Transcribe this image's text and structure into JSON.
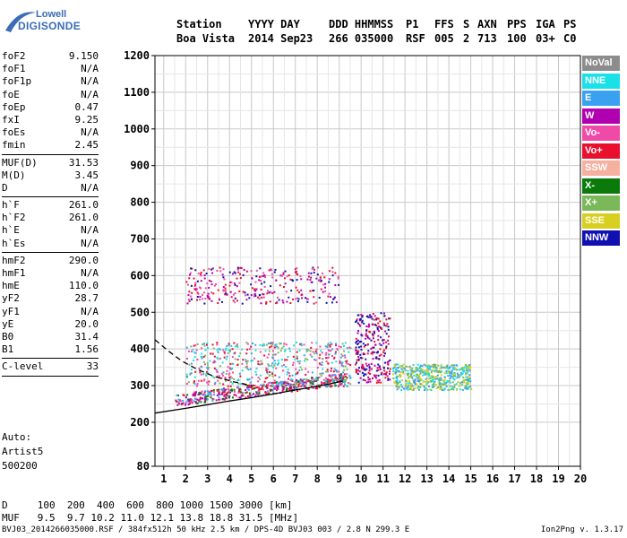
{
  "logo": {
    "line1": "Lowell",
    "line2": "DIGISONDE"
  },
  "header": {
    "row1": [
      "Station",
      "YYYY DAY",
      "DDD HHMMSS",
      "P1",
      "FFS",
      "S",
      "AXN",
      "PPS",
      "IGA",
      "PS"
    ],
    "row2": [
      "Boa Vista",
      "2014 Sep23",
      "266 035000",
      "RSF",
      "005",
      "2",
      "713",
      "100",
      "03+",
      "C0"
    ]
  },
  "params": [
    {
      "k": "foF2",
      "v": "9.150"
    },
    {
      "k": "foF1",
      "v": "N/A"
    },
    {
      "k": "foF1p",
      "v": "N/A"
    },
    {
      "k": "foE",
      "v": "N/A"
    },
    {
      "k": "foEp",
      "v": "0.47"
    },
    {
      "k": "fxI",
      "v": "9.25"
    },
    {
      "k": "foEs",
      "v": "N/A"
    },
    {
      "k": "fmin",
      "v": "2.45"
    },
    {
      "sep": true
    },
    {
      "k": "MUF(D)",
      "v": "31.53"
    },
    {
      "k": "M(D)",
      "v": "3.45"
    },
    {
      "k": "D",
      "v": "N/A"
    },
    {
      "sep": true
    },
    {
      "k": "h`F",
      "v": "261.0"
    },
    {
      "k": "h`F2",
      "v": "261.0"
    },
    {
      "k": "h`E",
      "v": "N/A"
    },
    {
      "k": "h`Es",
      "v": "N/A"
    },
    {
      "sep": true
    },
    {
      "k": "hmF2",
      "v": "290.0"
    },
    {
      "k": "hmF1",
      "v": "N/A"
    },
    {
      "k": "hmE",
      "v": "110.0"
    },
    {
      "k": "yF2",
      "v": "28.7"
    },
    {
      "k": "yF1",
      "v": "N/A"
    },
    {
      "k": "yE",
      "v": "20.0"
    },
    {
      "k": "B0",
      "v": "31.4"
    },
    {
      "k": "B1",
      "v": "1.56"
    },
    {
      "sep": true
    },
    {
      "k": "C-level",
      "v": "33"
    },
    {
      "sep": true
    }
  ],
  "auto": {
    "line1": "Auto:",
    "line2": "Artist5",
    "line3": "500200"
  },
  "legend": [
    {
      "label": "NoVal",
      "color": "#8c8c8c"
    },
    {
      "label": "NNE",
      "color": "#1ae0e8"
    },
    {
      "label": "E",
      "color": "#3aa0f0"
    },
    {
      "label": "W",
      "color": "#b000b0"
    },
    {
      "label": "Vo-",
      "color": "#f04aa8"
    },
    {
      "label": "Vo+",
      "color": "#e8102c"
    },
    {
      "label": "SSW",
      "color": "#f5b0a0"
    },
    {
      "label": "X-",
      "color": "#0a7a0a"
    },
    {
      "label": "X+",
      "color": "#7ab85a"
    },
    {
      "label": "SSE",
      "color": "#d8d020"
    },
    {
      "label": "NNW",
      "color": "#1010b0"
    }
  ],
  "footer": {
    "d_row": "D     100  200  400  600  800 1000 1500 3000 [km]",
    "muf_row": "MUF   9.5  9.7 10.2 11.0 12.1 13.8 18.8 31.5 [MHz]",
    "file_line": "BVJ03_2014266035000.RSF / 384fx512h 50 kHz 2.5 km / DPS-4D BVJ03 003 / 2.8 N 299.3 E",
    "version": "Ion2Png v. 1.3.17"
  },
  "chart_data": {
    "type": "scatter",
    "xlabel": "",
    "ylabel": "",
    "xlim": [
      0.6,
      20
    ],
    "ylim": [
      80,
      1200
    ],
    "xticks": [
      1,
      2,
      3,
      4,
      5,
      6,
      7,
      8,
      9,
      10,
      11,
      12,
      13,
      14,
      15,
      16,
      17,
      18,
      19,
      20
    ],
    "yticks": [
      80,
      200,
      300,
      400,
      500,
      600,
      700,
      800,
      900,
      1000,
      1100,
      1200
    ],
    "grid": true,
    "legend_position": "right",
    "traces": [
      {
        "name": "O-trace profile",
        "color": "#000000",
        "points": [
          [
            0.6,
            225
          ],
          [
            2,
            238
          ],
          [
            3,
            248
          ],
          [
            4,
            258
          ],
          [
            5,
            267
          ],
          [
            6,
            277
          ],
          [
            7,
            288
          ],
          [
            8,
            298
          ],
          [
            9,
            310
          ],
          [
            9.15,
            312
          ]
        ]
      },
      {
        "name": "extrapolated profile",
        "color": "#000000",
        "dashed": true,
        "points": [
          [
            0.6,
            425
          ],
          [
            1.2,
            395
          ],
          [
            1.8,
            368
          ],
          [
            2.5,
            345
          ],
          [
            3.3,
            325
          ],
          [
            4.2,
            310
          ],
          [
            5,
            300
          ]
        ]
      }
    ],
    "echo_regions": [
      {
        "layer": "F trace",
        "x": [
          1.5,
          9.3
        ],
        "y": [
          255,
          345
        ],
        "colors": [
          "#e8102c",
          "#f04aa8",
          "#b000b0",
          "#0a7a0a",
          "#3aa0f0"
        ]
      },
      {
        "layer": "F spread",
        "x": [
          2.0,
          9.5
        ],
        "y": [
          300,
          420
        ],
        "colors": [
          "#1ae0e8",
          "#3aa0f0",
          "#e8102c",
          "#f04aa8",
          "#7ab85a"
        ]
      },
      {
        "layer": "high echoes",
        "x": [
          9.7,
          11.3
        ],
        "y": [
          310,
          500
        ],
        "colors": [
          "#1010b0",
          "#b000b0",
          "#e8102c"
        ]
      },
      {
        "layer": "X spread",
        "x": [
          11.4,
          15.0
        ],
        "y": [
          290,
          360
        ],
        "colors": [
          "#d8d020",
          "#1ae0e8",
          "#7ab85a",
          "#3aa0f0"
        ]
      },
      {
        "layer": "multi-hop",
        "x": [
          2.0,
          9.0
        ],
        "y": [
          525,
          625
        ],
        "colors": [
          "#e8102c",
          "#f04aa8",
          "#b000b0",
          "#1010b0"
        ]
      }
    ]
  }
}
